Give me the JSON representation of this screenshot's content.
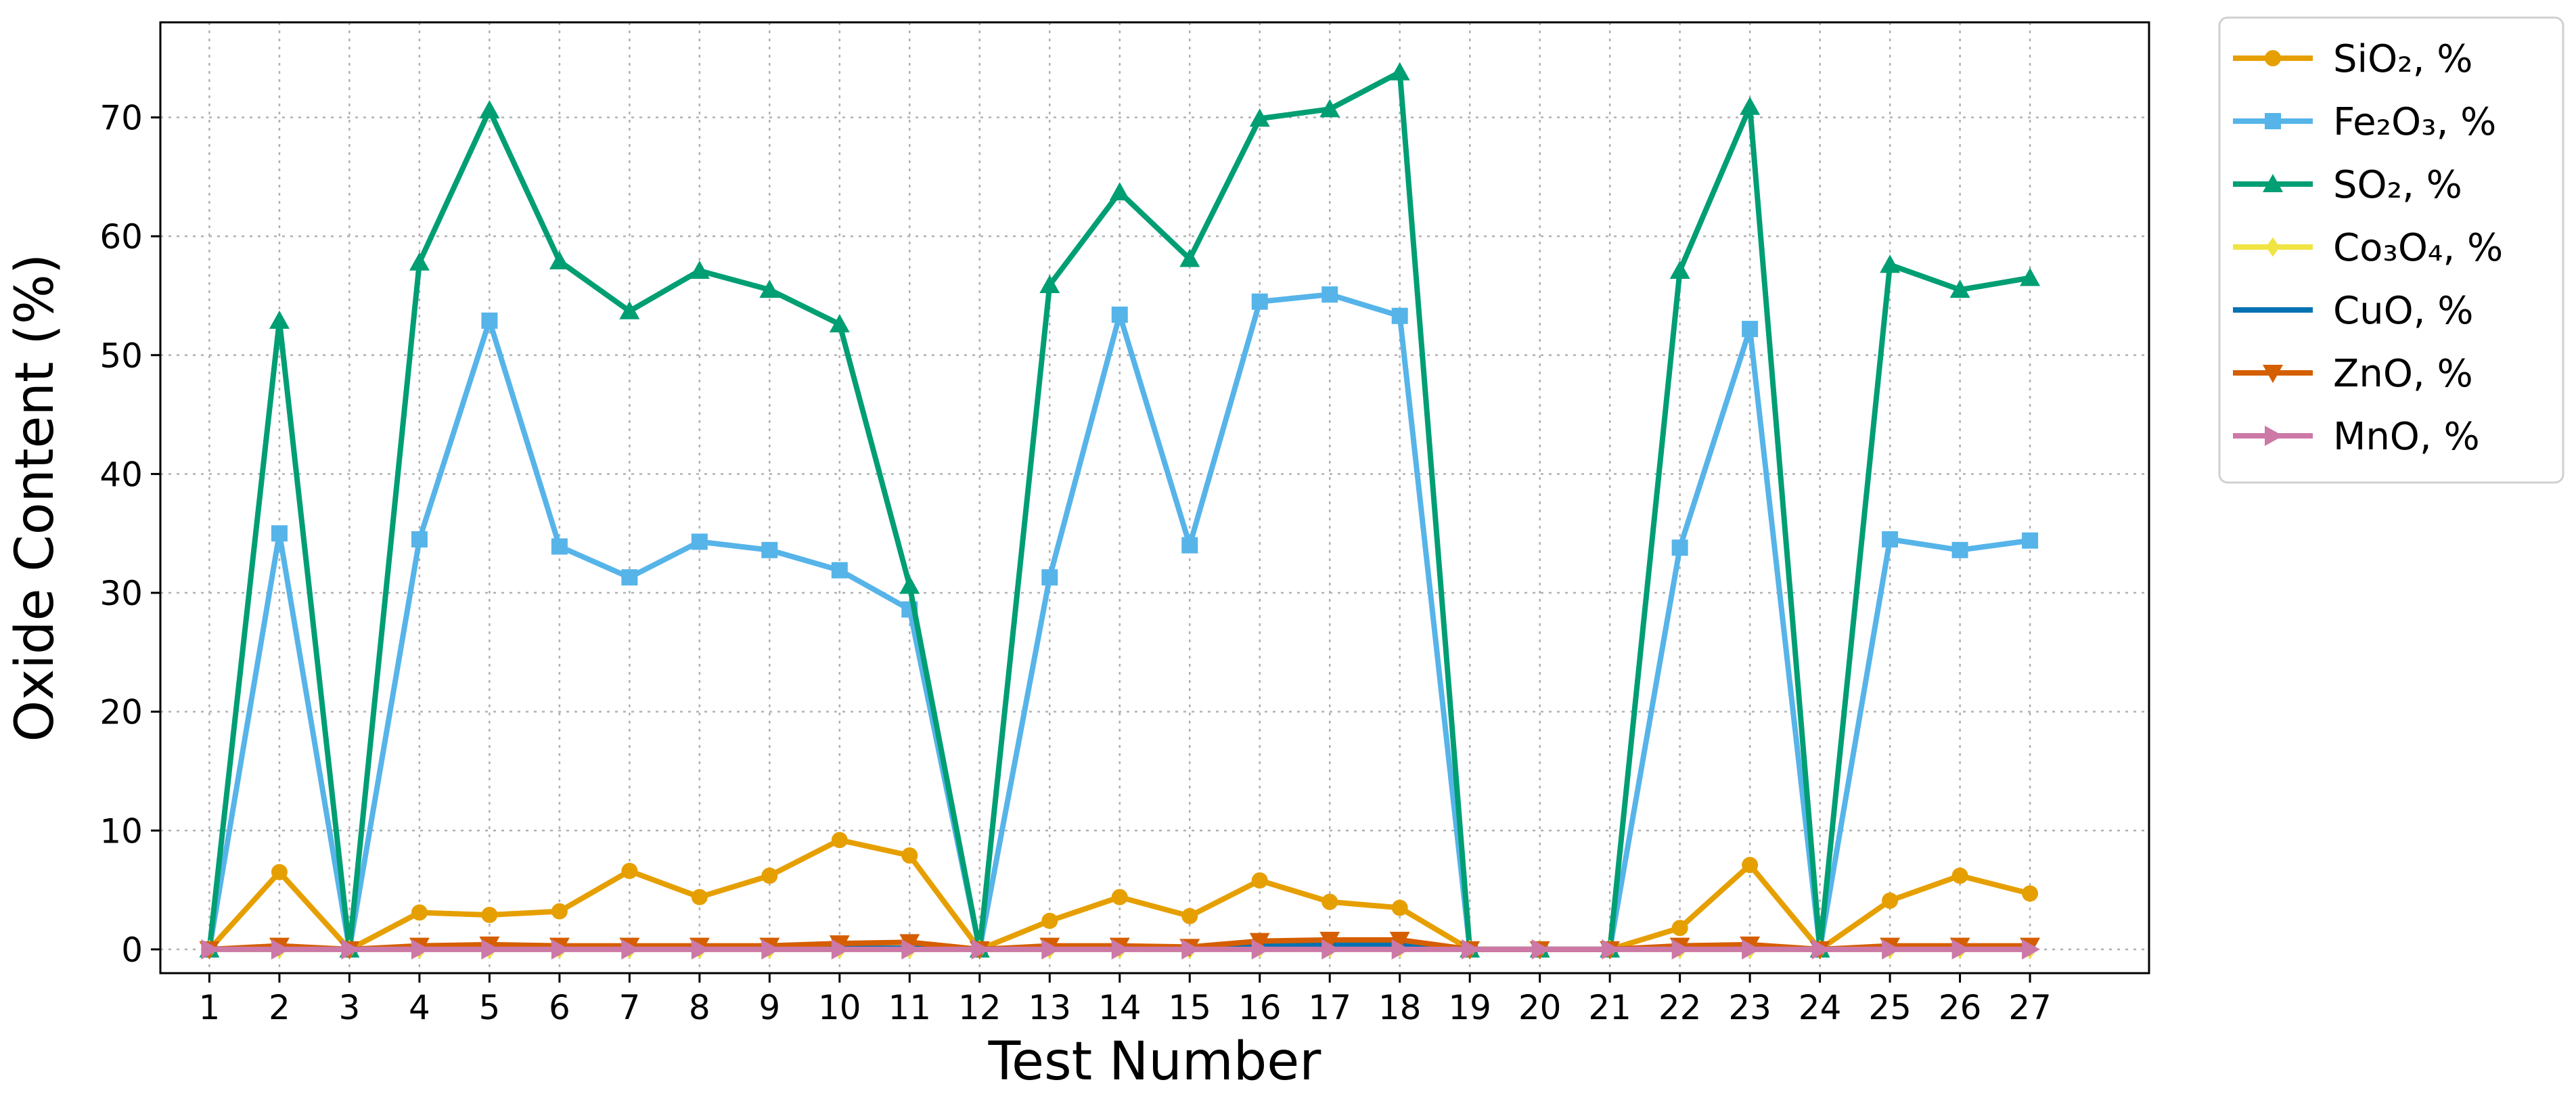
{
  "chart_data": {
    "type": "line",
    "xlabel": "Test Number",
    "ylabel": "Oxide Content (%)",
    "x": [
      1,
      2,
      3,
      4,
      5,
      6,
      7,
      8,
      9,
      10,
      11,
      12,
      13,
      14,
      15,
      16,
      17,
      18,
      19,
      20,
      21,
      22,
      23,
      24,
      25,
      26,
      27
    ],
    "ylim": [
      -2,
      78
    ],
    "yticks": [
      0,
      10,
      20,
      30,
      40,
      50,
      60,
      70
    ],
    "grid": true,
    "legend_position": "outside-top-right",
    "series": [
      {
        "name": "SiO₂, %",
        "color": "#E69F00",
        "marker": "circle",
        "values": [
          0,
          6.5,
          0,
          3.1,
          2.9,
          3.2,
          6.6,
          4.4,
          6.2,
          9.2,
          7.9,
          0,
          2.4,
          4.4,
          2.8,
          5.8,
          4.0,
          3.5,
          0,
          0,
          0,
          1.8,
          7.1,
          0,
          4.1,
          6.2,
          4.7
        ]
      },
      {
        "name": "Fe₂O₃, %",
        "color": "#56B4E9",
        "marker": "square",
        "values": [
          0,
          35.0,
          0,
          34.5,
          52.9,
          33.9,
          31.3,
          34.3,
          33.6,
          31.9,
          28.6,
          0,
          31.3,
          53.4,
          34.0,
          54.5,
          55.1,
          53.3,
          0,
          0,
          0,
          33.8,
          52.2,
          0,
          34.5,
          33.6,
          34.4
        ]
      },
      {
        "name": "SO₂, %",
        "color": "#009E73",
        "marker": "triangle-up",
        "values": [
          0,
          52.9,
          0,
          57.8,
          70.6,
          57.9,
          53.7,
          57.1,
          55.5,
          52.6,
          30.6,
          0,
          55.9,
          63.7,
          58.1,
          69.9,
          70.7,
          73.8,
          0,
          0,
          0,
          57.1,
          70.9,
          0,
          57.6,
          55.5,
          56.5
        ]
      },
      {
        "name": "Co₃O₄, %",
        "color": "#F0E442",
        "marker": "diamond",
        "values": [
          0,
          0,
          0,
          0,
          0,
          0,
          0,
          0,
          0,
          0,
          0,
          0,
          0,
          0,
          0,
          0.1,
          0.1,
          0.1,
          0,
          0,
          0,
          0,
          0,
          0,
          0,
          0,
          0
        ]
      },
      {
        "name": "CuO, %",
        "color": "#0072B2",
        "marker": "none",
        "values": [
          0,
          0.1,
          0,
          0.1,
          0.1,
          0.1,
          0.1,
          0.1,
          0.1,
          0.1,
          0.1,
          0,
          0.1,
          0.1,
          0.1,
          0.4,
          0.4,
          0.4,
          0,
          0,
          0,
          0.1,
          0.1,
          0,
          0.1,
          0.1,
          0.1
        ]
      },
      {
        "name": "ZnO, %",
        "color": "#D55E00",
        "marker": "triangle-down",
        "values": [
          0,
          0.3,
          0,
          0.3,
          0.4,
          0.3,
          0.3,
          0.3,
          0.3,
          0.5,
          0.6,
          0,
          0.3,
          0.3,
          0.2,
          0.7,
          0.8,
          0.8,
          0,
          0,
          0,
          0.3,
          0.4,
          0,
          0.3,
          0.3,
          0.3
        ]
      },
      {
        "name": "MnO, %",
        "color": "#CC79A7",
        "marker": "triangle-right",
        "values": [
          0,
          0,
          0,
          0,
          0,
          0,
          0,
          0,
          0,
          0,
          0,
          0,
          0,
          0,
          0,
          0,
          0,
          0,
          0,
          0,
          0,
          0,
          0,
          0,
          0,
          0,
          0
        ]
      }
    ]
  }
}
